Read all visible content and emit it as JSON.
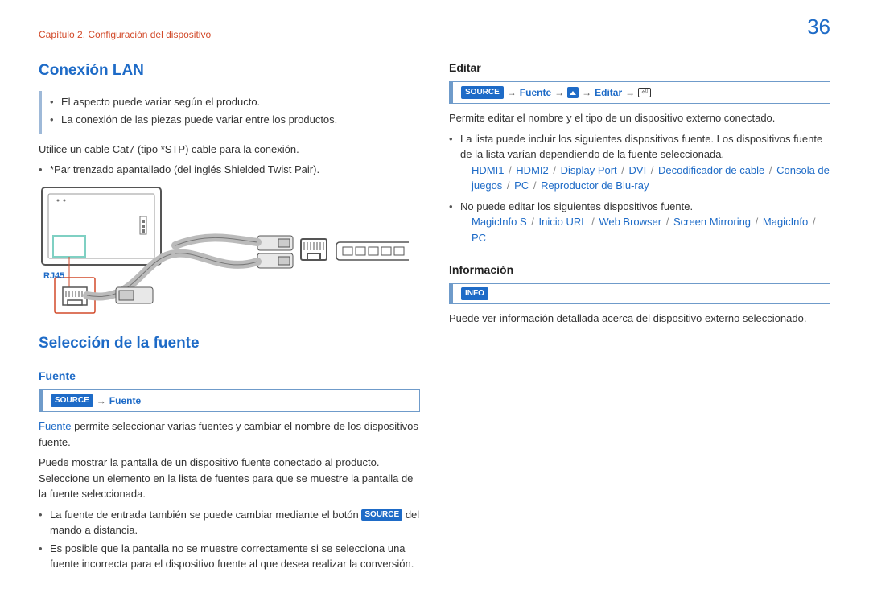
{
  "page_number": "36",
  "chapter": "Capítulo 2. Configuración del dispositivo",
  "left": {
    "h_lan": "Conexión LAN",
    "note1": "El aspecto puede variar según el producto.",
    "note2": "La conexión de las piezas puede variar entre los productos.",
    "p1": "Utilice un cable Cat7 (tipo *STP) cable para la conexión.",
    "p1b": "*Par trenzado apantallado (del inglés Shielded Twist Pair).",
    "rj45": "RJ45",
    "h_sel": "Selección de la fuente",
    "h_fuente": "Fuente",
    "path_source": "SOURCE",
    "path_fuente": "Fuente",
    "fuente_lead_kw": "Fuente",
    "fuente_lead_rest": " permite seleccionar varias fuentes y cambiar el nombre de los dispositivos fuente.",
    "p2": "Puede mostrar la pantalla de un dispositivo fuente conectado al producto. Seleccione un elemento en la lista de fuentes para que se muestre la pantalla de la fuente seleccionada.",
    "b1a": "La fuente de entrada también se puede cambiar mediante el botón ",
    "b1_badge": "SOURCE",
    "b1b": " del mando a distancia.",
    "b2": "Es posible que la pantalla no se muestre correctamente si se selecciona una fuente incorrecta para el dispositivo fuente al que desea realizar la conversión."
  },
  "right": {
    "h_editar": "Editar",
    "path_source": "SOURCE",
    "path_fuente": "Fuente",
    "path_editar": "Editar",
    "p1": "Permite editar el nombre y el tipo de un dispositivo externo conectado.",
    "b1": "La lista puede incluir los siguientes dispositivos fuente. Los dispositivos fuente de la lista varían dependiendo de la fuente seleccionada.",
    "devices1": [
      "HDMI1",
      "HDMI2",
      "Display Port",
      "DVI",
      "Decodificador de cable",
      "Consola de juegos",
      "PC",
      "Reproductor de Blu-ray"
    ],
    "b2": "No puede editar los siguientes dispositivos fuente.",
    "devices2": [
      "MagicInfo S",
      "Inicio URL",
      "Web Browser",
      "Screen Mirroring",
      "MagicInfo",
      "PC"
    ],
    "h_info": "Información",
    "info_badge": "INFO",
    "p2": "Puede ver información detallada acerca del dispositivo externo seleccionado."
  },
  "colors": {
    "accent": "#1e6bc7",
    "chapter": "#d24a2a",
    "note_border": "#9eb9d8"
  }
}
